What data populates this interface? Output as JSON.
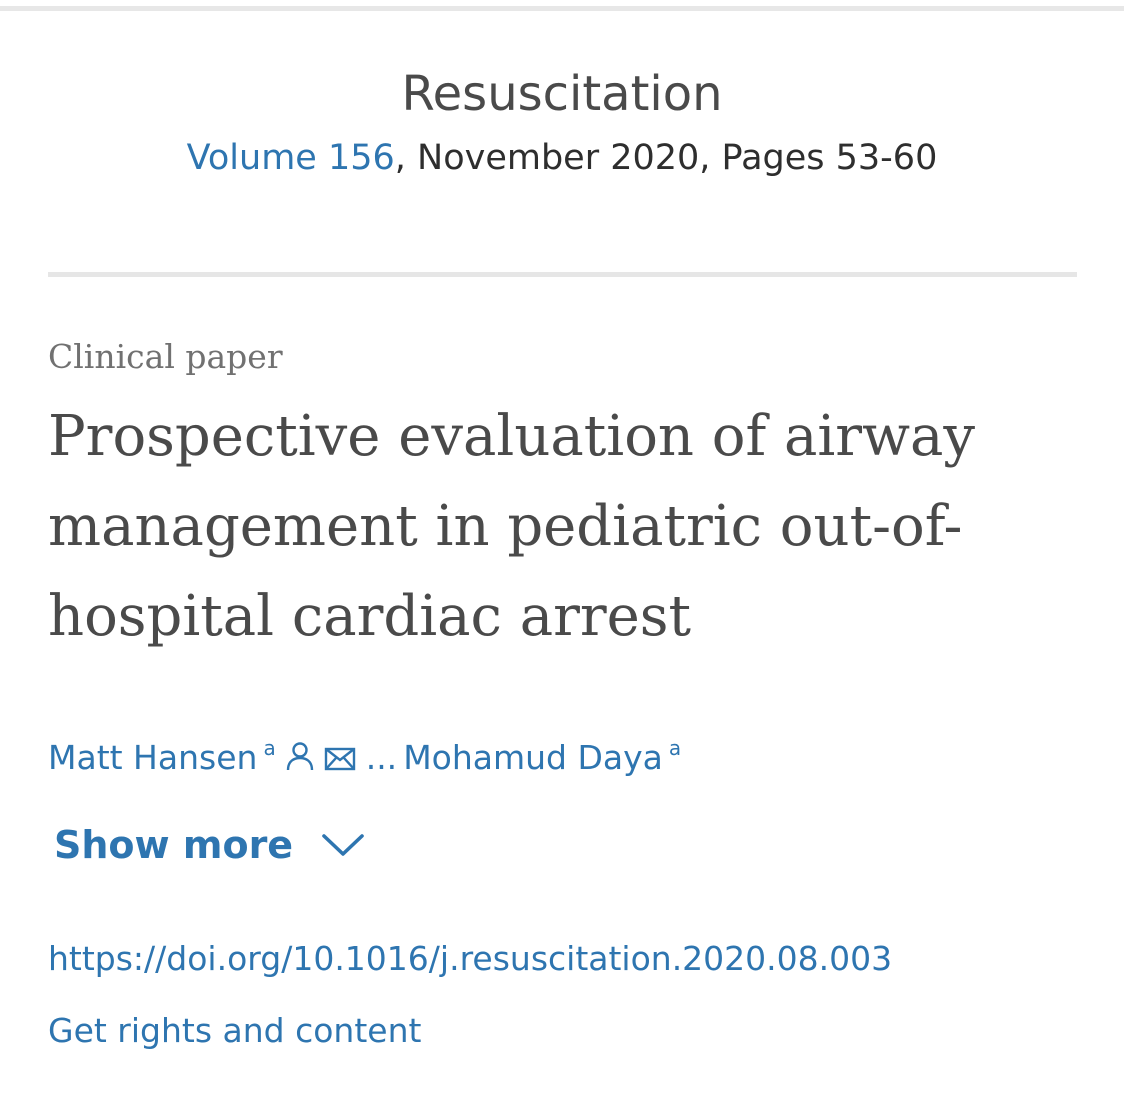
{
  "journal": {
    "title": "Resuscitation",
    "volume_label": "Volume 156",
    "issue_rest": ", November 2020, Pages 53-60"
  },
  "article": {
    "type": "Clinical paper",
    "title": "Prospective evaluation of airway management in pediatric out-of-hospital cardiac arrest"
  },
  "authors": {
    "first": {
      "name": "Matt Hansen",
      "affiliation": "a"
    },
    "ellipsis": "...",
    "last": {
      "name": "Mohamud Daya",
      "affiliation": "a"
    },
    "icons": [
      "person-icon",
      "envelope-icon"
    ]
  },
  "show_more": {
    "label": "Show more",
    "icon": "chevron-down-icon"
  },
  "links": {
    "doi": "https://doi.org/10.1016/j.resuscitation.2020.08.003",
    "rights": "Get rights and content"
  },
  "colors": {
    "link": "#2e75b0",
    "text": "#4a4a4a",
    "muted": "#717171",
    "rule": "#e6e6e6"
  }
}
